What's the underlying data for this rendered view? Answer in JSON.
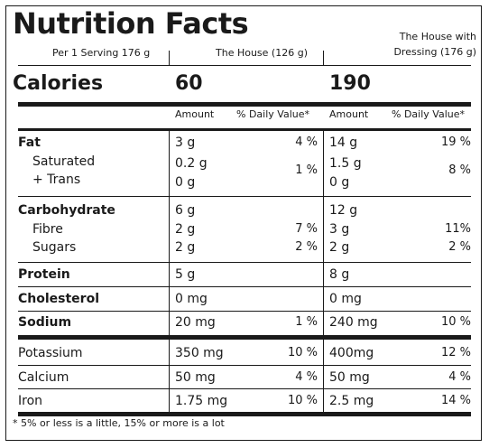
{
  "title": "Nutrition Facts",
  "serving_label": "Per 1 Serving 176 g",
  "columns": [
    {
      "header": "The House (126 g)",
      "calories": "60",
      "amount_label": "Amount",
      "dv_label": "% Daily Value*"
    },
    {
      "header": "The House with Dressing (176 g)",
      "calories": "190",
      "amount_label": "Amount",
      "dv_label": "% Daily Value*"
    }
  ],
  "calories_label": "Calories",
  "nutrients": {
    "fat": {
      "label": "Fat",
      "c1": "3 g",
      "c1_dv": "4 %",
      "c2": "14 g",
      "c2_dv": "19 %"
    },
    "sat": {
      "label1": "Saturated",
      "label2": "+ Trans",
      "c1a": "0.2 g",
      "c1b": "0 g",
      "c1_dv": "1 %",
      "c2a": "1.5 g",
      "c2b": "0 g",
      "c2_dv": "8 %"
    },
    "carb": {
      "label": "Carbohydrate",
      "c1": "6 g",
      "c2": "12 g"
    },
    "fibre": {
      "label": "Fibre",
      "c1": "2 g",
      "c1_dv": "7 %",
      "c2": "3 g",
      "c2_dv": "11%"
    },
    "sugars": {
      "label": "Sugars",
      "c1": "2 g",
      "c1_dv": "2 %",
      "c2": "2 g",
      "c2_dv": "2 %"
    },
    "protein": {
      "label": "Protein",
      "c1": "5 g",
      "c2": "8 g"
    },
    "chol": {
      "label": "Cholesterol",
      "c1": "0 mg",
      "c2": "0 mg"
    },
    "sodium": {
      "label": "Sodium",
      "c1": "20 mg",
      "c1_dv": "1 %",
      "c2": "240 mg",
      "c2_dv": "10 %"
    },
    "potassium": {
      "label": "Potassium",
      "c1": "350 mg",
      "c1_dv": "10 %",
      "c2": "400mg",
      "c2_dv": "12 %"
    },
    "calcium": {
      "label": "Calcium",
      "c1": "50 mg",
      "c1_dv": "4 %",
      "c2": "50 mg",
      "c2_dv": "4 %"
    },
    "iron": {
      "label": "Iron",
      "c1": "1.75 mg",
      "c1_dv": "10 %",
      "c2": "2.5 mg",
      "c2_dv": "14 %"
    }
  },
  "footnote": "* 5% or less is a little, 15% or more is a lot"
}
